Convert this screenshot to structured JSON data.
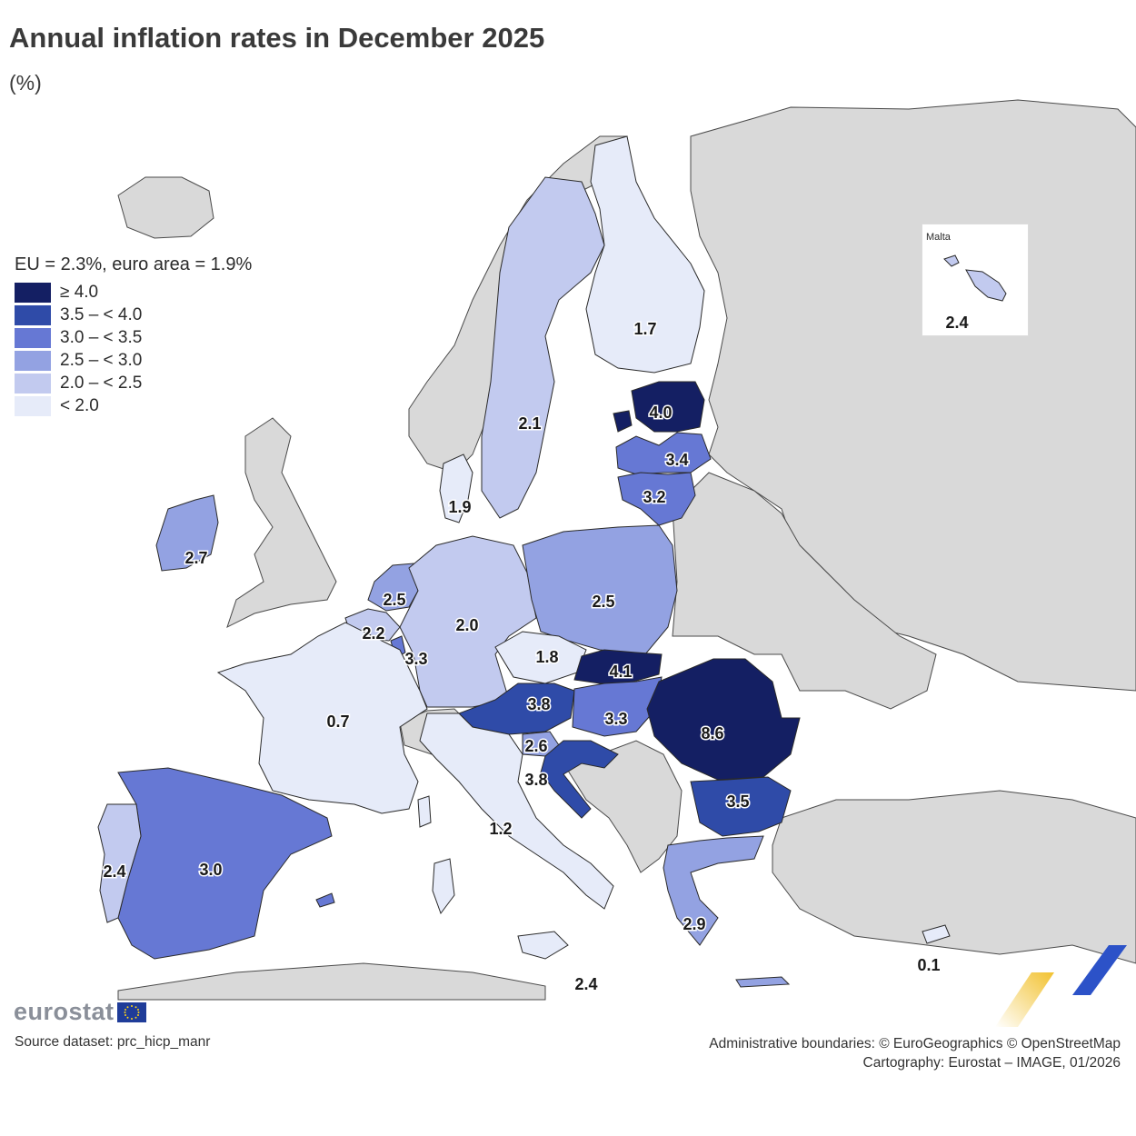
{
  "title": "Annual inflation rates in December 2025",
  "subtitle": "(%)",
  "legend": {
    "title": "EU = 2.3%, euro area = 1.9%",
    "classes": [
      {
        "label": "≥ 4.0",
        "color": "#141f63"
      },
      {
        "label": "3.5 – < 4.0",
        "color": "#2f4ba8"
      },
      {
        "label": "3.0 – < 3.5",
        "color": "#6678d4"
      },
      {
        "label": "2.5 – < 3.0",
        "color": "#93a2e2"
      },
      {
        "label": "2.0 – < 2.5",
        "color": "#c2caef"
      },
      {
        "label": "< 2.0",
        "color": "#e6ebf9"
      }
    ]
  },
  "countries": [
    {
      "name": "Finland",
      "value": 1.7
    },
    {
      "name": "Sweden",
      "value": 2.1
    },
    {
      "name": "Estonia",
      "value": 4.0
    },
    {
      "name": "Latvia",
      "value": 3.4
    },
    {
      "name": "Lithuania",
      "value": 3.2
    },
    {
      "name": "Denmark",
      "value": 1.9
    },
    {
      "name": "Ireland",
      "value": 2.7
    },
    {
      "name": "Netherlands",
      "value": 2.5
    },
    {
      "name": "Belgium",
      "value": 2.2
    },
    {
      "name": "Luxembourg",
      "value": 3.3
    },
    {
      "name": "Germany",
      "value": 2.0
    },
    {
      "name": "Poland",
      "value": 2.5
    },
    {
      "name": "Czechia",
      "value": 1.8
    },
    {
      "name": "Slovakia",
      "value": 4.1
    },
    {
      "name": "Austria",
      "value": 3.8
    },
    {
      "name": "Hungary",
      "value": 3.3
    },
    {
      "name": "Romania",
      "value": 8.6
    },
    {
      "name": "Slovenia",
      "value": 2.6
    },
    {
      "name": "Croatia",
      "value": 3.8
    },
    {
      "name": "Bulgaria",
      "value": 3.5
    },
    {
      "name": "France",
      "value": 0.7
    },
    {
      "name": "Italy",
      "value": 1.2
    },
    {
      "name": "Spain",
      "value": 3.0
    },
    {
      "name": "Portugal",
      "value": 2.4
    },
    {
      "name": "Greece",
      "value": 2.9
    },
    {
      "name": "Cyprus",
      "value": 0.1
    }
  ],
  "extra_labels": [
    {
      "name": "Malta (sea label)",
      "value": "2.4"
    }
  ],
  "malta_inset": {
    "title": "Malta",
    "value": "2.4"
  },
  "logo": "eurostat",
  "source": "Source dataset: prc_hicp_manr",
  "credits": [
    "Administrative boundaries: © EuroGeographics © OpenStreetMap",
    "Cartography: Eurostat – IMAGE, 01/2026"
  ],
  "colors": {
    "non_member": "#d9d9d9",
    "sea": "#ffffff",
    "logo_grey": "#8a8f99",
    "eu_blue": "#1f3c99",
    "deco_yellow": "#f2c230",
    "deco_blue": "#2c52c8"
  }
}
